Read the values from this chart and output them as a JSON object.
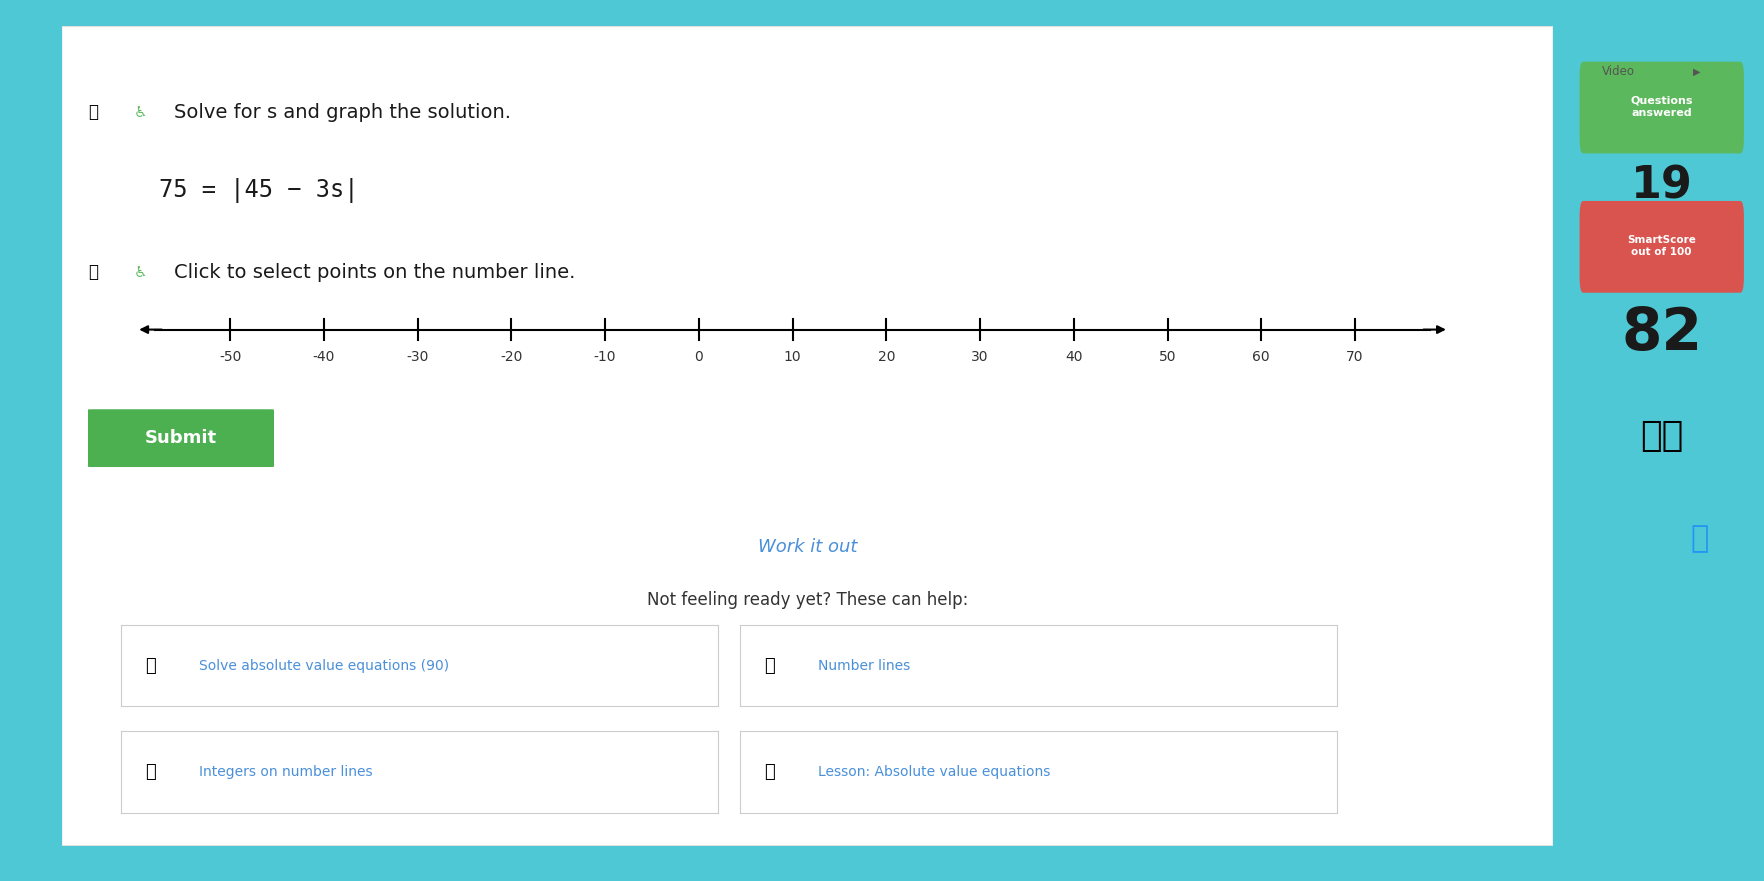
{
  "bg_outer": "#4ec8d4",
  "bg_panel": "#f2f2f2",
  "bg_white": "#ffffff",
  "title_instruction": "Solve for s and graph the solution.",
  "equation": "75 = |45 − 3s|",
  "click_instruction": "Click to select points on the number line.",
  "number_line_ticks": [
    -50,
    -40,
    -30,
    -20,
    -10,
    0,
    10,
    20,
    30,
    40,
    50,
    60,
    70
  ],
  "number_line_min": -60,
  "number_line_max": 80,
  "submit_text": "Submit",
  "submit_color": "#4caf50",
  "submit_text_color": "#ffffff",
  "work_it_out": "Work it out",
  "not_feeling": "Not feeling ready yet? These can help:",
  "link_color": "#4a90d9",
  "help_items": [
    "Solve absolute value equations (90)",
    "Number lines",
    "Integers on number lines",
    "Lesson: Absolute value equations"
  ],
  "video_text": "Video",
  "questions_text": "Questions\nanswered",
  "questions_bg": "#5cb85c",
  "score_number": "19",
  "smartscore_text": "SmartScore\nout of 100",
  "smartscore_bg": "#d9534f",
  "big_score": "82",
  "panel_border": "#e0e0e0"
}
